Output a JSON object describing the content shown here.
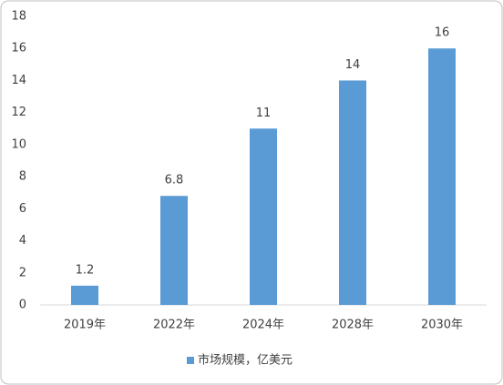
{
  "chart_data": {
    "type": "bar",
    "categories": [
      "2019年",
      "2022年",
      "2024年",
      "2028年",
      "2030年"
    ],
    "series": [
      {
        "name": "市场规模，亿美元",
        "color": "#5b9bd5",
        "values": [
          1.2,
          6.8,
          11,
          14,
          16
        ]
      }
    ],
    "ylim": [
      0,
      18
    ],
    "yticks": [
      0,
      2,
      4,
      6,
      8,
      10,
      12,
      14,
      16,
      18
    ],
    "grid": false,
    "data_labels": true,
    "legend": "bottom"
  }
}
